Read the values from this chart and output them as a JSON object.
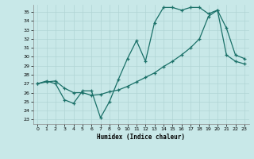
{
  "xlabel": "Humidex (Indice chaleur)",
  "background_color": "#c8e8e8",
  "grid_color": "#b0d4d4",
  "line_color": "#1a7068",
  "xlim": [
    -0.5,
    23.5
  ],
  "ylim": [
    22.5,
    35.8
  ],
  "yticks": [
    23,
    24,
    25,
    26,
    27,
    28,
    29,
    30,
    31,
    32,
    33,
    34,
    35
  ],
  "xticks": [
    0,
    1,
    2,
    3,
    4,
    5,
    6,
    7,
    8,
    9,
    10,
    11,
    12,
    13,
    14,
    15,
    16,
    17,
    18,
    19,
    20,
    21,
    22,
    23
  ],
  "line1_x": [
    0,
    1,
    2,
    3,
    4,
    5,
    6,
    7,
    8,
    9,
    10,
    11,
    12,
    13,
    14,
    15,
    16,
    17,
    18,
    19,
    20,
    21,
    22,
    23
  ],
  "line1_y": [
    27.0,
    27.3,
    27.0,
    25.2,
    24.8,
    26.2,
    26.2,
    23.2,
    25.0,
    27.5,
    29.8,
    31.8,
    29.5,
    33.8,
    35.5,
    35.5,
    35.2,
    35.5,
    35.5,
    34.8,
    35.2,
    33.2,
    30.2,
    29.8
  ],
  "line2_x": [
    0,
    1,
    2,
    3,
    4,
    5,
    6,
    7,
    8,
    9,
    10,
    11,
    12,
    13,
    14,
    15,
    16,
    17,
    18,
    19,
    20,
    21,
    22,
    23
  ],
  "line2_y": [
    27.0,
    27.2,
    27.3,
    26.5,
    26.0,
    26.0,
    25.7,
    25.8,
    26.1,
    26.3,
    26.7,
    27.2,
    27.7,
    28.2,
    28.9,
    29.5,
    30.2,
    31.0,
    32.0,
    34.5,
    35.2,
    30.2,
    29.5,
    29.2
  ]
}
